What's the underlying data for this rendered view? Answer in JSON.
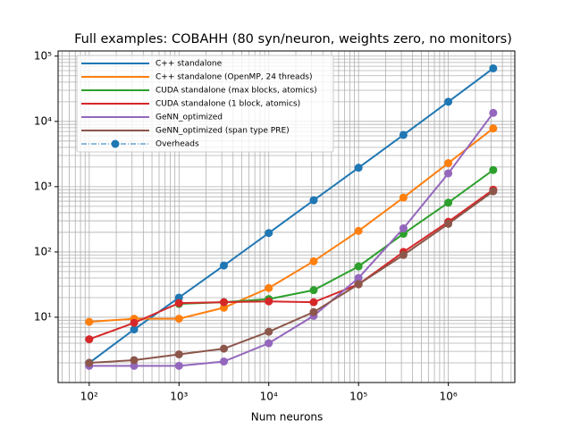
{
  "chart_data": {
    "type": "line",
    "title": "Full examples: COBAHH (80 syn/neuron, weights zero, no monitors)",
    "xlabel": "Num neurons",
    "xscale": "log",
    "yscale": "log",
    "grid": true,
    "minor_grid": true,
    "legend": "upper left",
    "x": [
      100,
      316,
      1000,
      3162,
      10000,
      31623,
      100000,
      316228,
      1000000,
      3162278
    ],
    "xlim": [
      45,
      5500000
    ],
    "ylim": [
      1,
      120000
    ],
    "xticks": [
      {
        "value": 100,
        "label": "10²"
      },
      {
        "value": 1000,
        "label": "10³"
      },
      {
        "value": 10000,
        "label": "10⁴"
      },
      {
        "value": 100000,
        "label": "10⁵"
      },
      {
        "value": 1000000,
        "label": "10⁶"
      }
    ],
    "yticks": [
      {
        "value": 10,
        "label": "10¹"
      },
      {
        "value": 100,
        "label": "10²"
      },
      {
        "value": 1000,
        "label": "10³"
      },
      {
        "value": 10000,
        "label": "10⁴"
      },
      {
        "value": 100000,
        "label": "10⁵"
      }
    ],
    "series": [
      {
        "name": "C++ standalone",
        "color": "#1f77b4",
        "values": [
          2.0,
          6.5,
          20,
          62,
          195,
          620,
          1950,
          6200,
          20000,
          65000
        ]
      },
      {
        "name": "C++ standalone (OpenMP, 24 threads)",
        "color": "#ff7f0e",
        "values": [
          8.5,
          9.5,
          9.5,
          14,
          28,
          72,
          210,
          680,
          2300,
          7800
        ]
      },
      {
        "name": "CUDA standalone (max blocks, atomics)",
        "color": "#2ca02c",
        "values": [
          null,
          null,
          16,
          17,
          19,
          26,
          60,
          190,
          570,
          1800
        ]
      },
      {
        "name": "CUDA standalone (1 block, atomics)",
        "color": "#d62728",
        "values": [
          4.6,
          8.2,
          16.5,
          17,
          17.5,
          17,
          32,
          100,
          290,
          900
        ]
      },
      {
        "name": "GeNN_optimized",
        "color": "#9467bd",
        "values": [
          1.8,
          1.8,
          1.8,
          2.1,
          4.0,
          10.5,
          40,
          230,
          1600,
          13500
        ]
      },
      {
        "name": "GeNN_optimized (span type PRE)",
        "color": "#8c564b",
        "values": [
          2.0,
          2.2,
          2.7,
          3.3,
          6.0,
          12,
          32,
          90,
          270,
          850
        ]
      },
      {
        "name": "Overheads",
        "color": "#1f77b4",
        "linestyle": "dashdot",
        "values": [
          null,
          null,
          null,
          null,
          null,
          null,
          null,
          null,
          null,
          null
        ]
      }
    ]
  }
}
